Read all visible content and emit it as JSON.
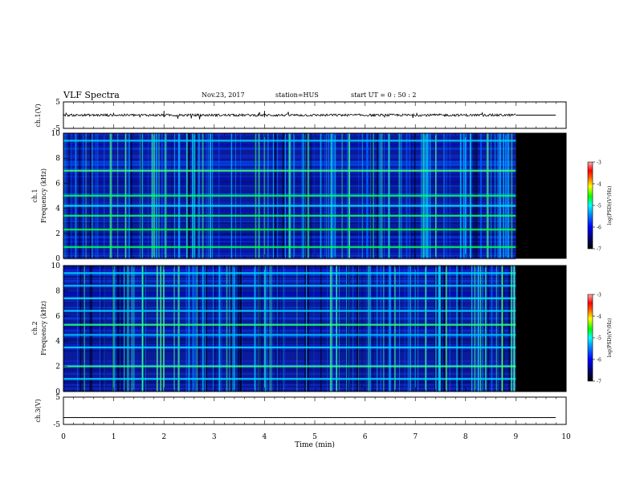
{
  "header": {
    "title": "VLF Spectra",
    "date": "Nov.23, 2017",
    "station": "station=HUS",
    "start_time": "start  UT =  0 : 50 : 2"
  },
  "panels": {
    "ch1_wave_label": "ch.1(V)",
    "ch1_spec_label": "ch.1",
    "ch2_spec_label": "ch.2",
    "ch3_wave_label": "ch.3(V)",
    "freq_label": "Frequency (kHz)",
    "colorbar_label": "log(PSD)(V²/Hz)"
  },
  "chart_data": [
    {
      "type": "line",
      "name": "ch.1(V) waveform",
      "ylabel": "ch.1(V)",
      "ylim": [
        -5,
        5
      ],
      "y_ticks": [
        "5",
        "-5"
      ],
      "x": [
        0,
        9.0
      ],
      "approx_value": 0,
      "data_ends_min": 9.0
    },
    {
      "type": "heatmap",
      "name": "ch.1 spectrogram",
      "ylabel": "Frequency (kHz)",
      "xlim": [
        0,
        10
      ],
      "ylim": [
        0,
        10
      ],
      "y_ticks": [
        "0",
        "2",
        "4",
        "6",
        "8",
        "10"
      ],
      "data_ends_min": 9.0,
      "strong_lines_khz": [
        0.9,
        2.3,
        3.4,
        4.2,
        5.0,
        7.0,
        9.4
      ],
      "colorbar": {
        "min": -7,
        "max": -3,
        "ticks": [
          "-3",
          "-4",
          "-5",
          "-6",
          "-7"
        ]
      }
    },
    {
      "type": "heatmap",
      "name": "ch.2 spectrogram",
      "ylabel": "Frequency (kHz)",
      "xlim": [
        0,
        10
      ],
      "ylim": [
        0,
        10
      ],
      "y_ticks": [
        "0",
        "2",
        "4",
        "6",
        "8",
        "10"
      ],
      "data_ends_min": 9.0,
      "strong_lines_khz": [
        1.0,
        2.0,
        3.5,
        4.5,
        5.3,
        6.4,
        7.4,
        8.4,
        9.4
      ],
      "colorbar": {
        "min": -7,
        "max": -3,
        "ticks": [
          "-3",
          "-4",
          "-5",
          "-6",
          "-7"
        ]
      }
    },
    {
      "type": "line",
      "name": "ch.3(V) waveform",
      "ylabel": "ch.3(V)",
      "ylim": [
        -5,
        5
      ],
      "y_ticks": [
        "5",
        "-5"
      ],
      "approx_value": -2.5
    }
  ],
  "x_axis": {
    "label": "Time (min)",
    "ticks": [
      "0",
      "1",
      "2",
      "3",
      "4",
      "5",
      "6",
      "7",
      "8",
      "9",
      "10"
    ],
    "range": [
      0,
      10
    ]
  },
  "colormap": [
    "#000080",
    "#0000ff",
    "#0080ff",
    "#00ffff",
    "#00ff00",
    "#ffff00",
    "#ff8000",
    "#ff0000",
    "#ff8080",
    "#ffffff"
  ]
}
